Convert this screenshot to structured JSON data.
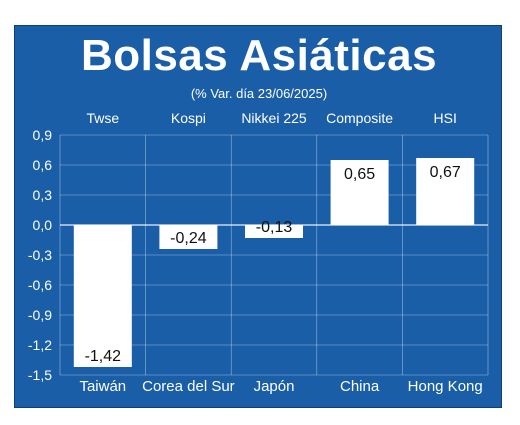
{
  "title": "Bolsas Asiáticas",
  "subtitle": "(% Var. día 23/06/2025)",
  "colors": {
    "background": "#1a5ea8",
    "bar": "#ffffff",
    "text": "#ffffff",
    "grid": "#ffffff"
  },
  "chart_data": {
    "type": "bar",
    "indices": [
      "Twse",
      "Kospi",
      "Nikkei 225",
      "Composite",
      "HSI"
    ],
    "categories": [
      "Taiwán",
      "Corea del Sur",
      "Japón",
      "China",
      "Hong Kong"
    ],
    "values": [
      -1.42,
      -0.24,
      -0.13,
      0.65,
      0.67
    ],
    "value_labels": [
      "-1,42",
      "-0,24",
      "-0,13",
      "0,65",
      "0,67"
    ],
    "yticks": [
      0.9,
      0.6,
      0.3,
      0.0,
      -0.3,
      -0.6,
      -0.9,
      -1.2,
      -1.5
    ],
    "ytick_labels": [
      "0,9",
      "0,6",
      "0,3",
      "0,0",
      "-0,3",
      "-0,6",
      "-0,9",
      "-1,2",
      "-1,5"
    ],
    "ylim": [
      -1.5,
      0.9
    ],
    "grid": true,
    "xlabel": "",
    "ylabel": ""
  }
}
